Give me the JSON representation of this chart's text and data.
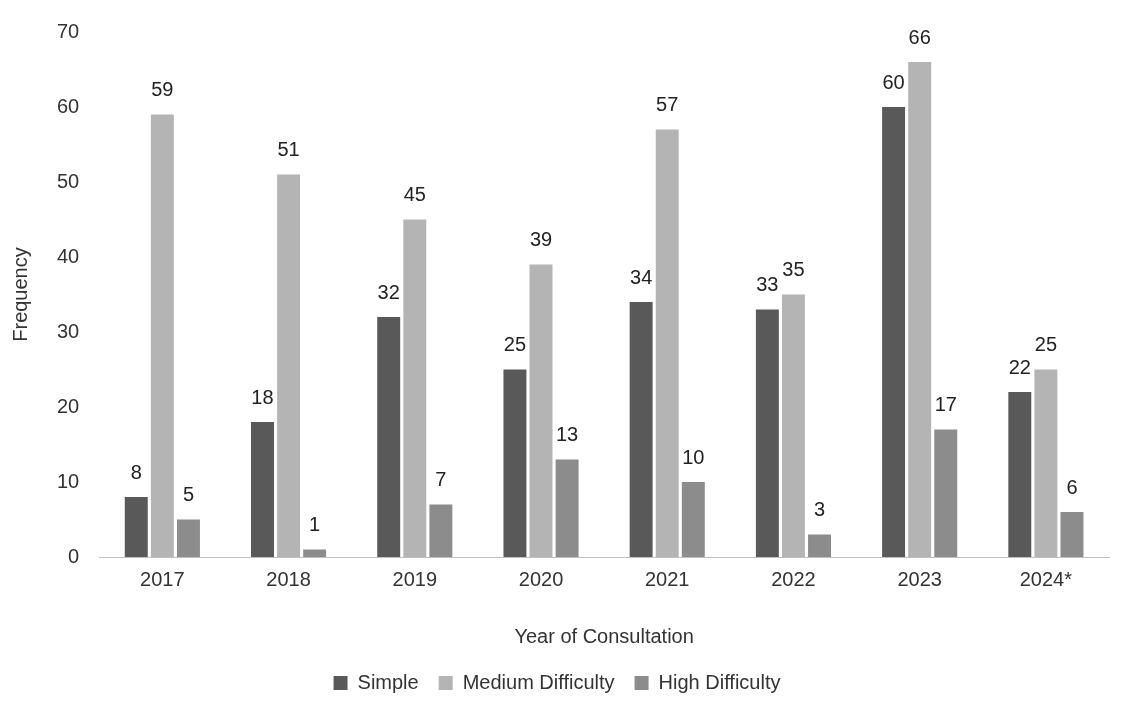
{
  "chart_data": {
    "type": "bar",
    "xlabel": "Year of Consultation",
    "ylabel": "Frequency",
    "categories": [
      "2017",
      "2018",
      "2019",
      "2020",
      "2021",
      "2022",
      "2023",
      "2024*"
    ],
    "series": [
      {
        "name": "Simple",
        "color": "#595959",
        "values": [
          8,
          18,
          32,
          25,
          34,
          33,
          60,
          22
        ]
      },
      {
        "name": "Medium Difficulty",
        "color": "#b4b4b4",
        "values": [
          59,
          51,
          45,
          39,
          57,
          35,
          66,
          25
        ]
      },
      {
        "name": "High Difficulty",
        "color": "#8c8c8c",
        "values": [
          5,
          1,
          7,
          13,
          10,
          3,
          17,
          6
        ]
      }
    ],
    "ylim": [
      0,
      70
    ],
    "yticks": [
      0,
      10,
      20,
      30,
      40,
      50,
      60,
      70
    ],
    "grid": false,
    "legend": "bottom",
    "data_labels": true
  }
}
